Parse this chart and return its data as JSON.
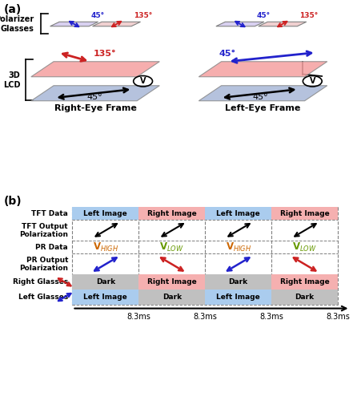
{
  "color_blue": "#2222cc",
  "color_red": "#cc2222",
  "color_pink_plate": "#f5a0a0",
  "color_blue_plate": "#a8b8d8",
  "color_purple_lens": "#d8d0f0",
  "color_pink_lens": "#f0d0d0",
  "tft_data_colors": [
    "#aaccee",
    "#f5b0b0",
    "#aaccee",
    "#f5b0b0"
  ],
  "tft_data_texts": [
    "Left Image",
    "Right Image",
    "Left Image",
    "Right Image"
  ],
  "right_glasses_colors": [
    "#c0c0c0",
    "#f5b0b0",
    "#c0c0c0",
    "#f5b0b0"
  ],
  "right_glasses_texts": [
    "Dark",
    "Right Image",
    "Dark",
    "Right Image"
  ],
  "left_glasses_colors": [
    "#aaccee",
    "#c0c0c0",
    "#aaccee",
    "#c0c0c0"
  ],
  "left_glasses_texts": [
    "Left Image",
    "Dark",
    "Left Image",
    "Dark"
  ],
  "v_high_color": "#cc6600",
  "v_low_color": "#669900",
  "col_time_labels": [
    "8.3ms",
    "8.3ms",
    "8.3ms",
    "8.3ms"
  ]
}
